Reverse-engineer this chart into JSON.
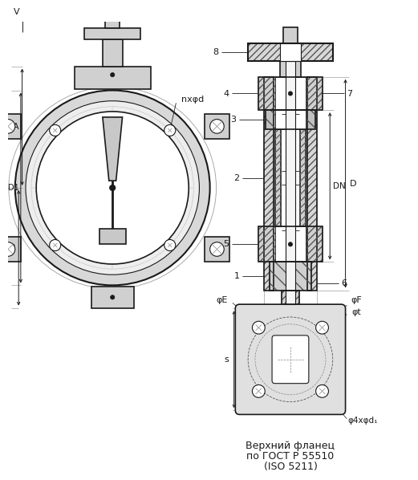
{
  "bg_color": "#ffffff",
  "line_color": "#1a1a1a",
  "caption_lines": [
    "Верхний фланец",
    "по ГОСТ Р 55510",
    "(ISO 5211)"
  ]
}
